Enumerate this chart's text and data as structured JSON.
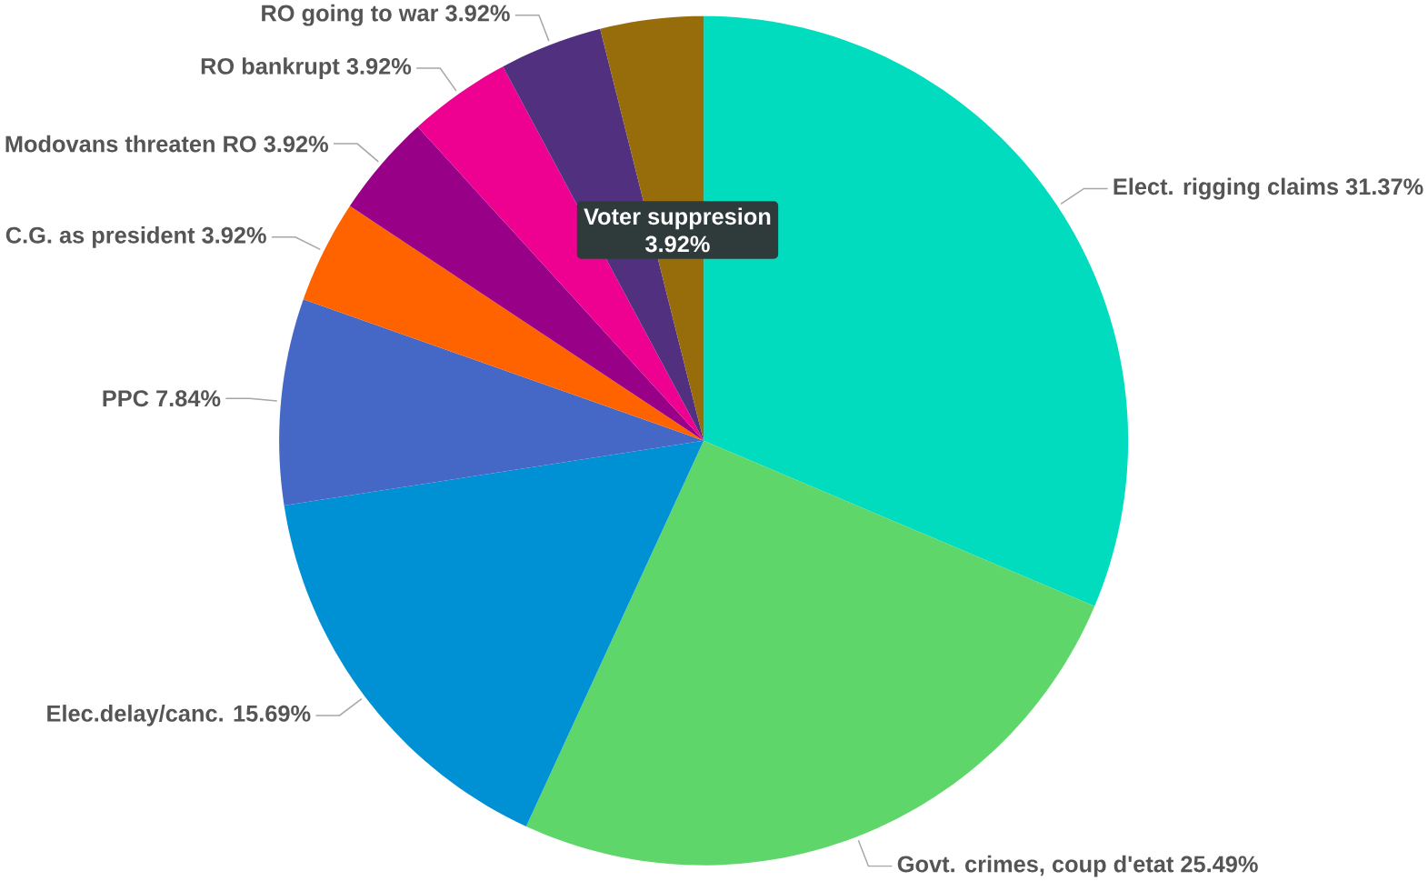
{
  "chart_data": {
    "type": "pie",
    "categories": [
      "Elect. rigging claims",
      "Govt. crimes, coup d'etat",
      "Elec.delay/canc.",
      "PPC",
      "C.G. as president",
      "Modovans threaten RO",
      "RO bankrupt",
      "RO going to war",
      "Voter suppresion"
    ],
    "values": [
      31.37,
      25.49,
      15.69,
      7.84,
      3.92,
      3.92,
      3.92,
      3.92,
      3.92
    ],
    "value_labels": [
      "31.37%",
      "25.49%",
      "15.69%",
      "7.84%",
      "3.92%",
      "3.92%",
      "3.92%",
      "3.92%",
      "3.92%"
    ],
    "colors": [
      "#01dcbe",
      "#5ed66a",
      "#0091d5",
      "#4568c6",
      "#ff6300",
      "#990088",
      "#ee0090",
      "#513080",
      "#976c0b"
    ]
  }
}
